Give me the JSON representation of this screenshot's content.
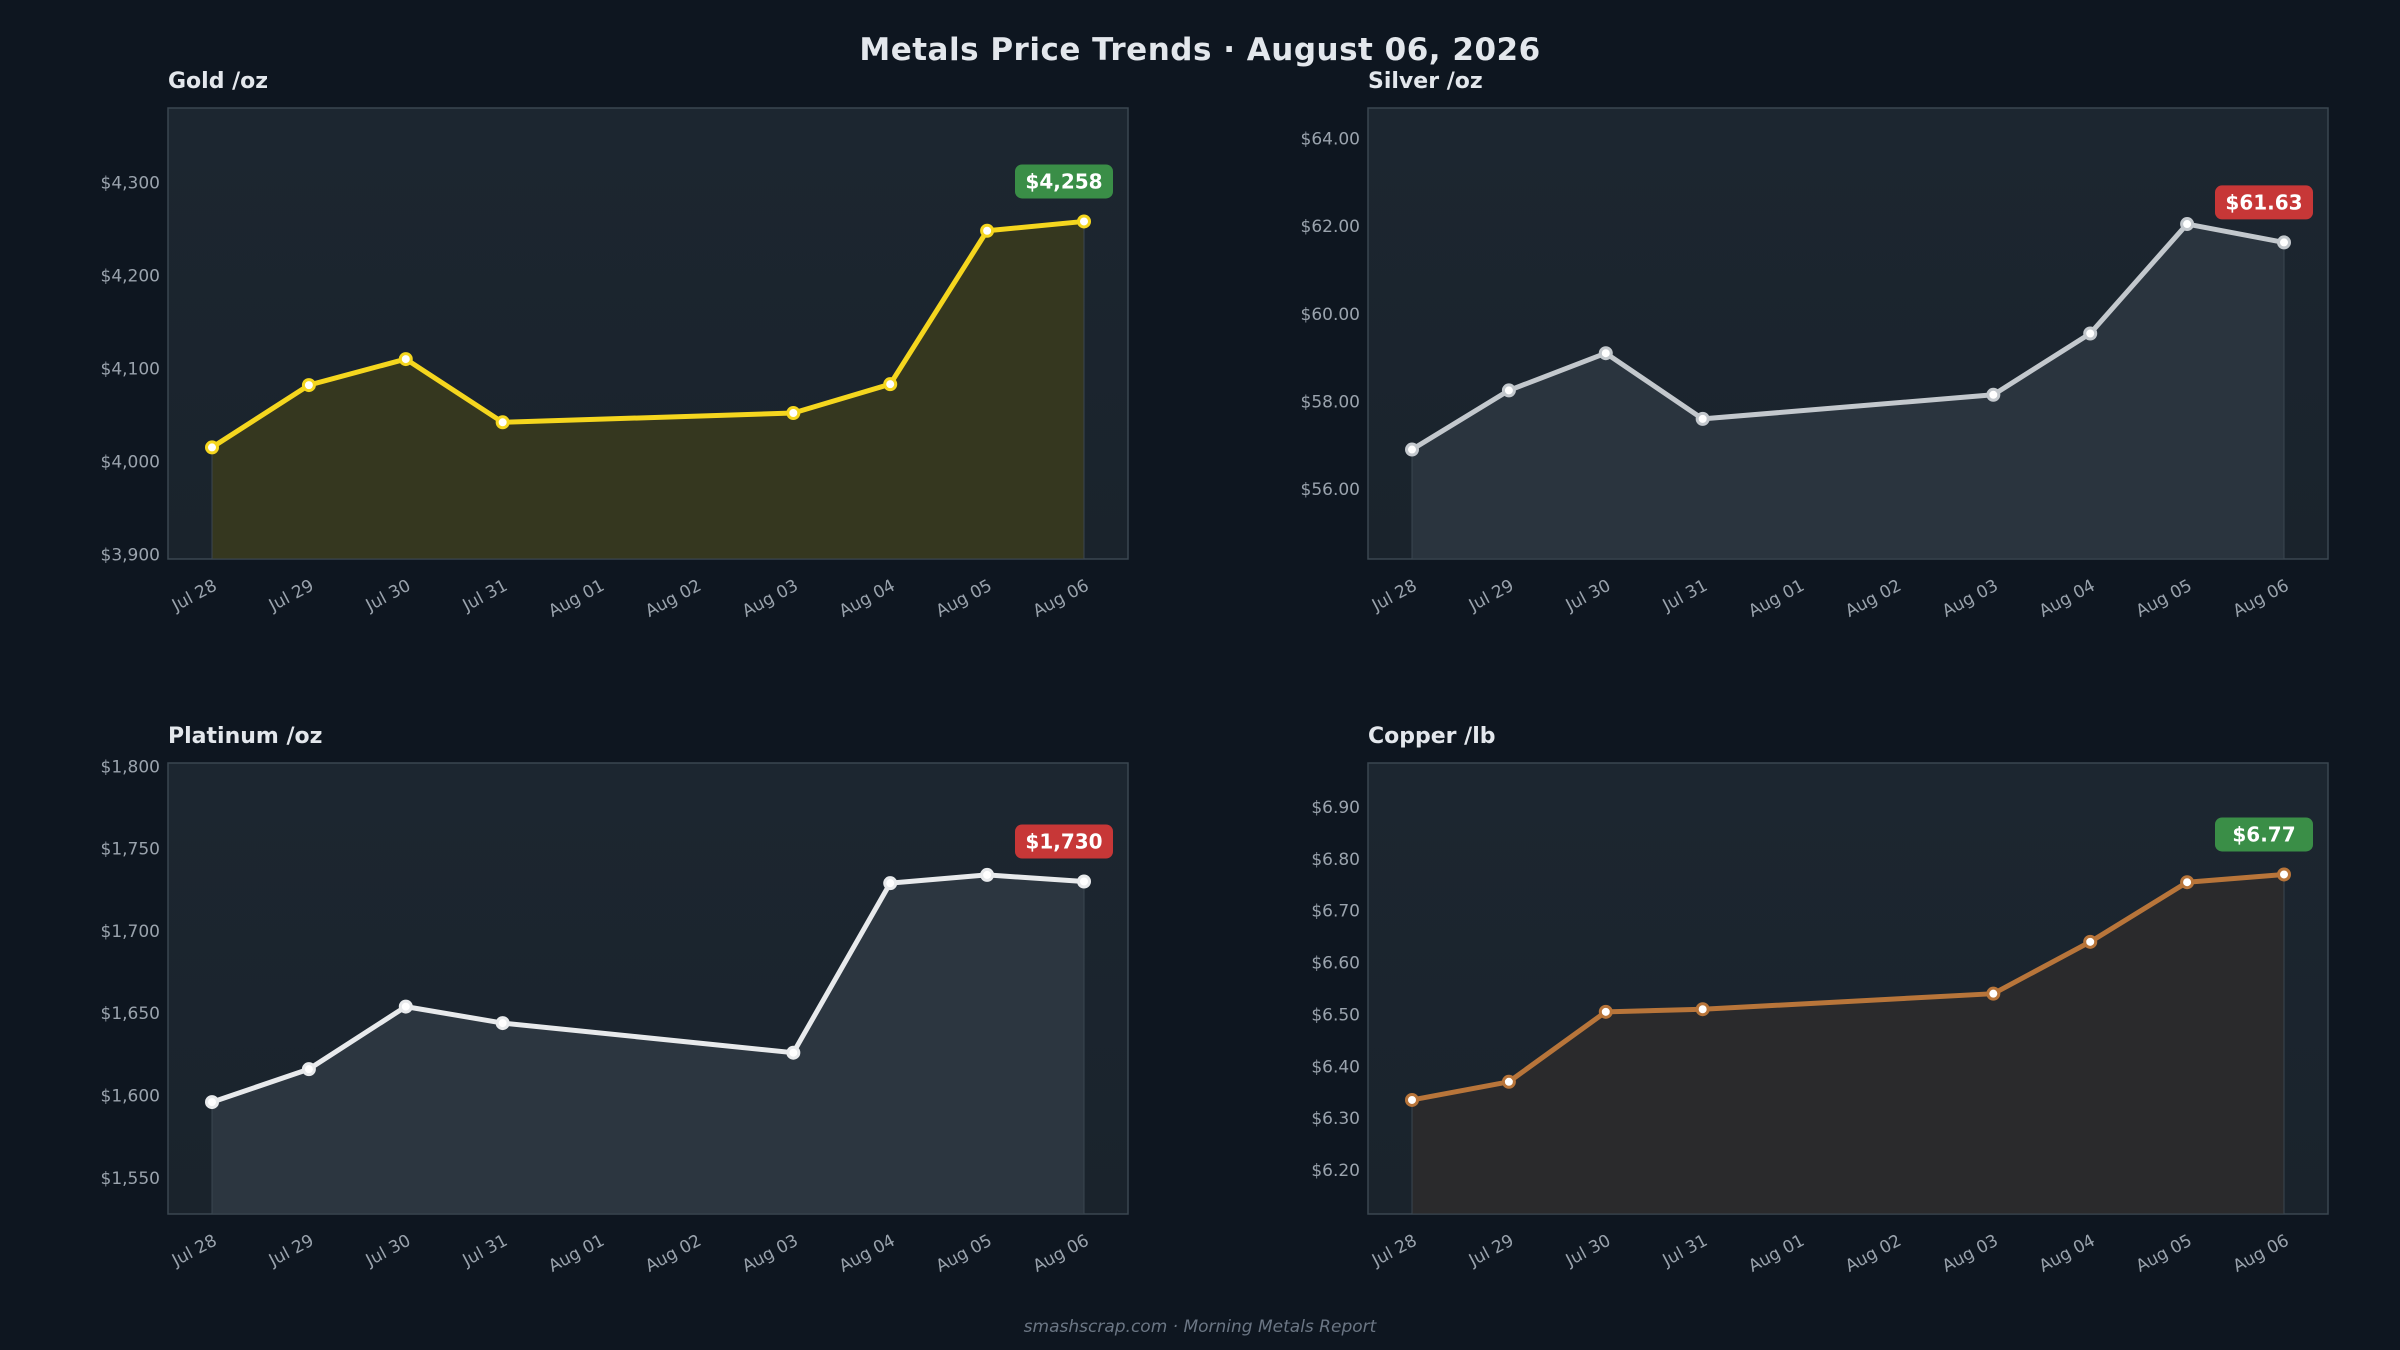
{
  "title": "Metals Price Trends  ·  August 06, 2026",
  "footer": "smashscrap.com  ·  Morning Metals Report",
  "chart_data": [
    {
      "type": "line",
      "title": "Gold  /oz",
      "categories": [
        "Jul 28",
        "Jul 29",
        "Jul 30",
        "Jul 31",
        "Aug 01",
        "Aug 02",
        "Aug 03",
        "Aug 04",
        "Aug 05",
        "Aug 06"
      ],
      "points": [
        {
          "day": 0,
          "value": 4015
        },
        {
          "day": 1,
          "value": 4082
        },
        {
          "day": 2,
          "value": 4110
        },
        {
          "day": 3,
          "value": 4042
        },
        {
          "day": 6,
          "value": 4052
        },
        {
          "day": 7,
          "value": 4083
        },
        {
          "day": 8,
          "value": 4248
        },
        {
          "day": 9,
          "value": 4258
        }
      ],
      "ylim": [
        3895,
        4380
      ],
      "yticks": [
        3900,
        4000,
        4100,
        4200,
        4300
      ],
      "ytick_labels": [
        "$3,900",
        "$4,000",
        "$4,100",
        "$4,200",
        "$4,300"
      ],
      "badge": "$4,258",
      "badge_color": "#3a8e47",
      "line_color": "#f5d61e",
      "fill_color": "#35371f",
      "marker_edge": "#f5d61e",
      "marker_face": "#ffffff"
    },
    {
      "type": "line",
      "title": "Silver  /oz",
      "categories": [
        "Jul 28",
        "Jul 29",
        "Jul 30",
        "Jul 31",
        "Aug 01",
        "Aug 02",
        "Aug 03",
        "Aug 04",
        "Aug 05",
        "Aug 06"
      ],
      "points": [
        {
          "day": 0,
          "value": 56.9
        },
        {
          "day": 1,
          "value": 58.25
        },
        {
          "day": 2,
          "value": 59.1
        },
        {
          "day": 3,
          "value": 57.6
        },
        {
          "day": 6,
          "value": 58.15
        },
        {
          "day": 7,
          "value": 59.55
        },
        {
          "day": 8,
          "value": 62.05
        },
        {
          "day": 9,
          "value": 61.63
        }
      ],
      "ylim": [
        54.4,
        64.7
      ],
      "yticks": [
        56,
        58,
        60,
        62,
        64
      ],
      "ytick_labels": [
        "$56.00",
        "$58.00",
        "$60.00",
        "$62.00",
        "$64.00"
      ],
      "badge": "$61.63",
      "badge_color": "#c73737",
      "line_color": "#c3c8cd",
      "fill_color": "#2a343e",
      "marker_edge": "#c3c8cd",
      "marker_face": "#ffffff"
    },
    {
      "type": "line",
      "title": "Platinum  /oz",
      "categories": [
        "Jul 28",
        "Jul 29",
        "Jul 30",
        "Jul 31",
        "Aug 01",
        "Aug 02",
        "Aug 03",
        "Aug 04",
        "Aug 05",
        "Aug 06"
      ],
      "points": [
        {
          "day": 0,
          "value": 1596
        },
        {
          "day": 1,
          "value": 1616
        },
        {
          "day": 2,
          "value": 1654
        },
        {
          "day": 3,
          "value": 1644
        },
        {
          "day": 6,
          "value": 1626
        },
        {
          "day": 7,
          "value": 1729
        },
        {
          "day": 8,
          "value": 1734
        },
        {
          "day": 9,
          "value": 1730
        }
      ],
      "ylim": [
        1528,
        1802
      ],
      "yticks": [
        1550,
        1600,
        1650,
        1700,
        1750,
        1800
      ],
      "ytick_labels": [
        "$1,550",
        "$1,600",
        "$1,650",
        "$1,700",
        "$1,750",
        "$1,800"
      ],
      "badge": "$1,730",
      "badge_color": "#c73737",
      "line_color": "#e8eaec",
      "fill_color": "#2c3640",
      "marker_edge": "#e8eaec",
      "marker_face": "#ffffff"
    },
    {
      "type": "line",
      "title": "Copper  /lb",
      "categories": [
        "Jul 28",
        "Jul 29",
        "Jul 30",
        "Jul 31",
        "Aug 01",
        "Aug 02",
        "Aug 03",
        "Aug 04",
        "Aug 05",
        "Aug 06"
      ],
      "points": [
        {
          "day": 0,
          "value": 6.335
        },
        {
          "day": 1,
          "value": 6.37
        },
        {
          "day": 2,
          "value": 6.505
        },
        {
          "day": 3,
          "value": 6.51
        },
        {
          "day": 6,
          "value": 6.54
        },
        {
          "day": 7,
          "value": 6.64
        },
        {
          "day": 8,
          "value": 6.755
        },
        {
          "day": 9,
          "value": 6.77
        }
      ],
      "ylim": [
        6.115,
        6.985
      ],
      "yticks": [
        6.2,
        6.3,
        6.4,
        6.5,
        6.6,
        6.7,
        6.8,
        6.9
      ],
      "ytick_labels": [
        "$6.20",
        "$6.30",
        "$6.40",
        "$6.50",
        "$6.60",
        "$6.70",
        "$6.80",
        "$6.90"
      ],
      "badge": "$6.77",
      "badge_color": "#3a8e47",
      "line_color": "#b8753a",
      "fill_color": "#2a2a2c",
      "marker_edge": "#b8753a",
      "marker_face": "#ffffff"
    }
  ]
}
